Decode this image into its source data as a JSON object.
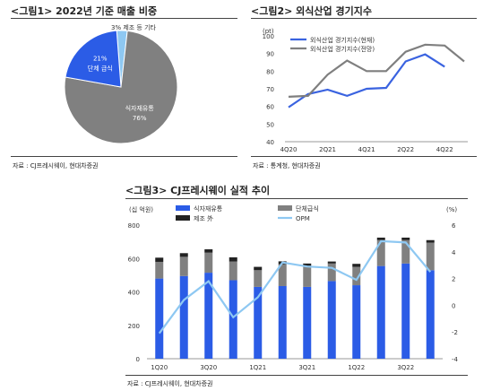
{
  "figures": {
    "fig1": {
      "title": "<그림1> 2022년 기준 매출 비중",
      "source": "자료 : CJ프레시웨이, 현대차증권"
    },
    "fig2": {
      "title": "<그림2> 외식산업 경기지수",
      "source": "자료 : 통계청, 현대차증권"
    },
    "fig3": {
      "title": "<그림3> CJ프레시웨이 실적 추이",
      "source": "자료 : CJ프레시웨이, 현대차증권"
    }
  },
  "colors": {
    "blue": "#2b5ce6",
    "gray": "#808080",
    "light_blue": "#8ec8f2",
    "black": "#222222",
    "dark_gray": "#6e6e6e"
  },
  "chart_data": [
    {
      "type": "pie",
      "slices": [
        {
          "label": "식자재유통",
          "value": 76,
          "value_label": "76%",
          "color": "#808080"
        },
        {
          "label": "단체 급식",
          "value": 21,
          "value_label": "21%",
          "color": "#2b5ce6"
        },
        {
          "label": "3% 제조 등 기타",
          "value": 3,
          "value_label": "",
          "color": "#8ec8f2"
        }
      ]
    },
    {
      "type": "line",
      "yunit": "(pt)",
      "ylim": [
        40,
        100
      ],
      "yticks": [
        40,
        50,
        60,
        70,
        80,
        90,
        100
      ],
      "x": [
        "4Q20",
        "1Q21",
        "2Q21",
        "3Q21",
        "4Q21",
        "1Q22",
        "2Q22",
        "3Q22",
        "4Q22",
        "1Q23"
      ],
      "xtick_labels": [
        "4Q20",
        "2Q21",
        "4Q21",
        "2Q22",
        "4Q22"
      ],
      "legend": "top-left",
      "series": [
        {
          "name": "외식산업 경기지수(현재)",
          "color": "#3a63e0",
          "values": [
            59.5,
            67,
            69.5,
            66,
            70,
            70.5,
            85.5,
            89.5,
            82.5,
            null
          ]
        },
        {
          "name": "외식산업 경기지수(전망)",
          "color": "#7f7f7f",
          "values": [
            65.5,
            66,
            78,
            86,
            80,
            80,
            91,
            95,
            94.5,
            85.5
          ]
        }
      ]
    },
    {
      "type": "bar",
      "stacked": true,
      "y_left_unit": "(십 억원)",
      "y_right_unit": "(%)",
      "ylim_left": [
        0,
        800
      ],
      "yticks_left": [
        0,
        200,
        400,
        600,
        800
      ],
      "ylim_right": [
        -4,
        6
      ],
      "yticks_right": [
        -4,
        -2,
        0,
        2,
        4,
        6
      ],
      "categories": [
        "1Q20",
        "2Q20",
        "3Q20",
        "4Q20",
        "1Q21",
        "2Q21",
        "3Q21",
        "4Q21",
        "1Q22",
        "2Q22",
        "3Q22",
        "4Q22"
      ],
      "xtick_labels": [
        "1Q20",
        "3Q20",
        "1Q21",
        "3Q21",
        "1Q22",
        "3Q22"
      ],
      "legend": "top",
      "series": [
        {
          "name": "식자재유통",
          "color": "#2b5ce6",
          "values": [
            480,
            495,
            515,
            470,
            430,
            435,
            430,
            465,
            440,
            555,
            570,
            530
          ]
        },
        {
          "name": "단체급식",
          "color": "#808080",
          "values": [
            100,
            115,
            120,
            112,
            100,
            130,
            125,
            105,
            110,
            155,
            140,
            165
          ]
        },
        {
          "name": "제조 外",
          "color": "#222222",
          "values": [
            25,
            22,
            20,
            25,
            20,
            18,
            15,
            12,
            18,
            15,
            15,
            15
          ]
        }
      ],
      "line_series": {
        "name": "OPM",
        "color": "#8ec8f2",
        "axis": "right",
        "values": [
          -2.1,
          0.4,
          1.8,
          -0.9,
          0.6,
          3.2,
          2.9,
          2.8,
          1.9,
          4.8,
          4.7,
          2.5
        ]
      }
    }
  ]
}
